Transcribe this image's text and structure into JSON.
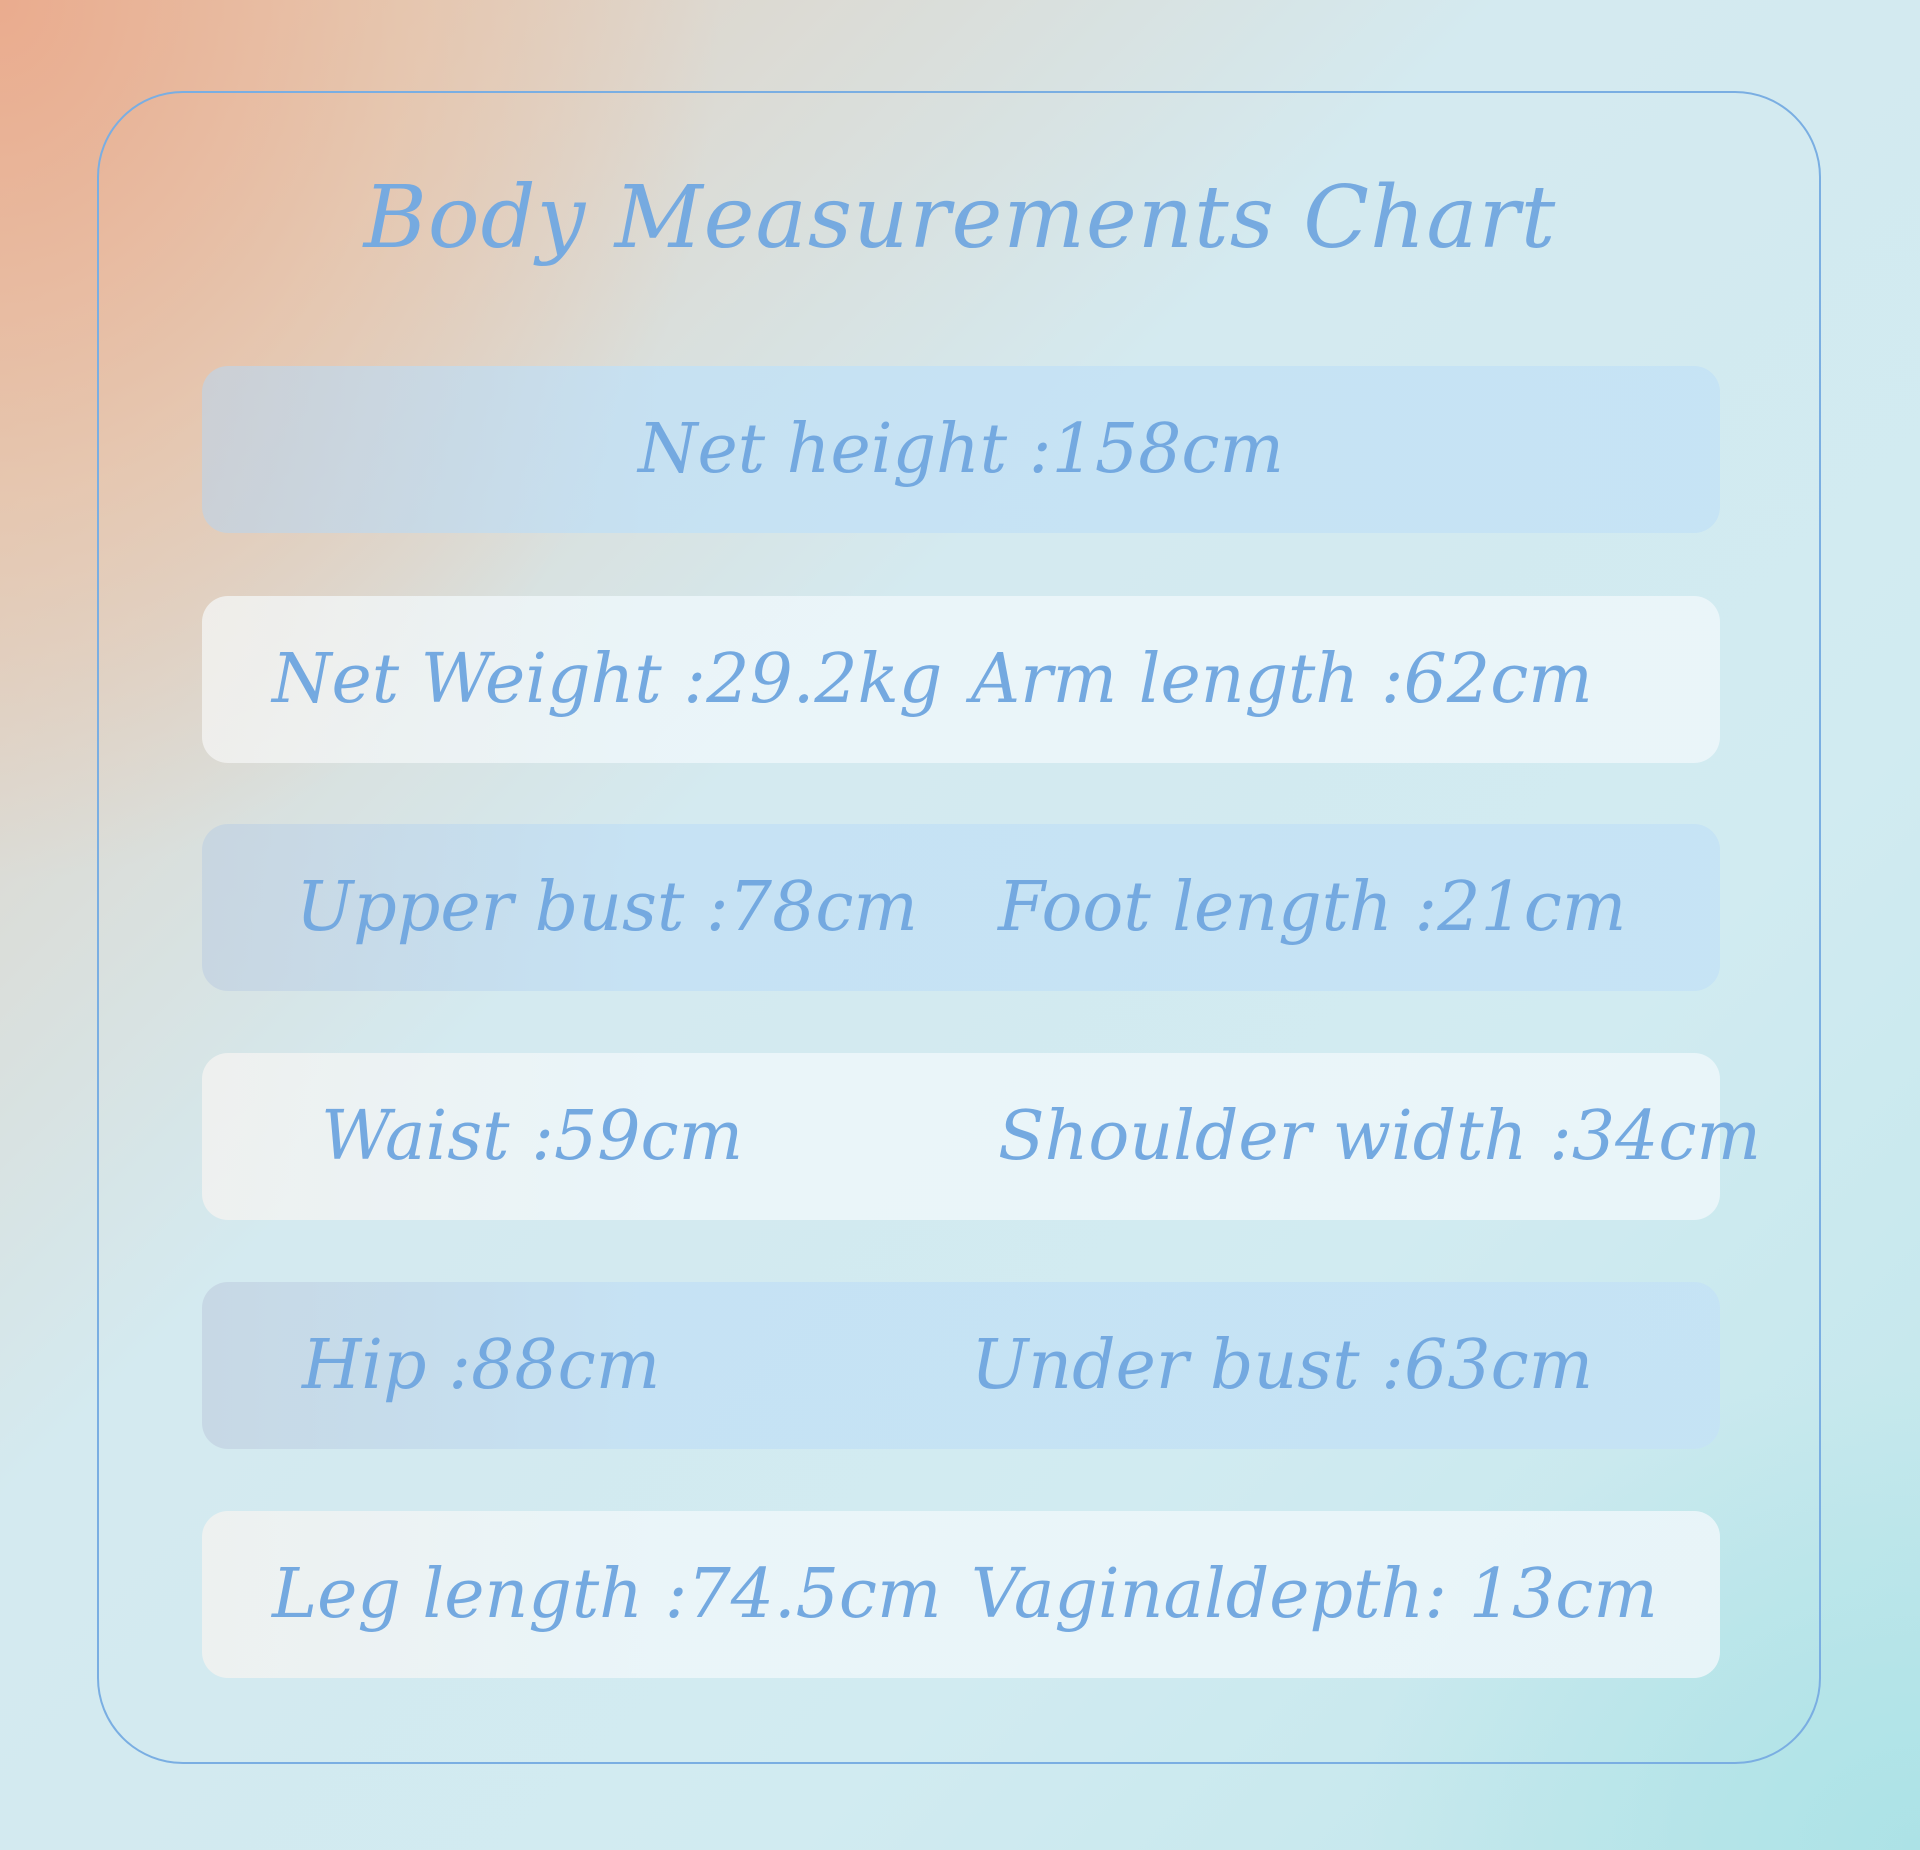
{
  "title": "Body Measurements Chart",
  "colors": {
    "text": "#74a9e0",
    "frame_border": "#7aaee2",
    "row_blue": "#c5e3f5",
    "row_white": "#ecf6fa"
  },
  "rows": [
    {
      "items": [
        "Net height :158cm"
      ]
    },
    {
      "items": [
        "Net Weight :29.2kg",
        "Arm length :62cm"
      ]
    },
    {
      "items": [
        "Upper bust :78cm",
        "Foot length :21cm"
      ]
    },
    {
      "items": [
        "Waist :59cm",
        "Shoulder width :34cm"
      ]
    },
    {
      "items": [
        "Hip :88cm",
        "Under bust :63cm"
      ]
    },
    {
      "items": [
        "Leg length :74.5cm",
        "Vaginaldepth: 13cm"
      ]
    }
  ]
}
